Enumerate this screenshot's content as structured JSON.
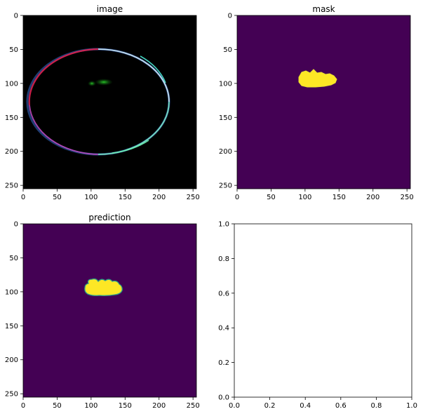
{
  "figure": {
    "background": "#ffffff"
  },
  "colors": {
    "viridis_low": "#440154",
    "viridis_high": "#fde725",
    "viridis_edge": "#21918c",
    "image_bg": "#000000"
  },
  "chart_data": [
    {
      "type": "heatmap",
      "title": "image",
      "image_kind": "rgb",
      "xticks": [
        0,
        50,
        100,
        150,
        200,
        250
      ],
      "yticks": [
        0,
        50,
        100,
        150,
        200,
        250
      ],
      "xlim": [
        0,
        255
      ],
      "ylim": [
        255,
        0
      ],
      "annotations": [
        "bright elliptical ring centered near (128,128), spanning x≈22–233, y≈50–207",
        "small green blob near x≈118–138, y≈95–102"
      ]
    },
    {
      "type": "heatmap",
      "title": "mask",
      "image_kind": "binary",
      "xticks": [
        0,
        50,
        100,
        150,
        200,
        250
      ],
      "yticks": [
        0,
        50,
        100,
        150,
        200,
        250
      ],
      "xlim": [
        0,
        255
      ],
      "ylim": [
        255,
        0
      ],
      "annotations": [
        "yellow region (value 1) roughly x≈92–147, y≈80–106"
      ]
    },
    {
      "type": "heatmap",
      "title": "prediction",
      "image_kind": "binary",
      "xticks": [
        0,
        50,
        100,
        150,
        200,
        250
      ],
      "yticks": [
        0,
        50,
        100,
        150,
        200,
        250
      ],
      "xlim": [
        0,
        255
      ],
      "ylim": [
        255,
        0
      ],
      "annotations": [
        "yellow region (value 1) roughly x≈92–145, y≈84–107"
      ]
    },
    {
      "type": "line",
      "title": "",
      "xticks": [
        0.0,
        0.2,
        0.4,
        0.6,
        0.8,
        1.0
      ],
      "yticks": [
        0.0,
        0.2,
        0.4,
        0.6,
        0.8,
        1.0
      ],
      "xtick_labels": [
        "0.0",
        "0.2",
        "0.4",
        "0.6",
        "0.8",
        "1.0"
      ],
      "ytick_labels": [
        "0.0",
        "0.2",
        "0.4",
        "0.6",
        "0.8",
        "1.0"
      ],
      "xlim": [
        0,
        1
      ],
      "ylim": [
        0,
        1
      ],
      "series": []
    }
  ]
}
